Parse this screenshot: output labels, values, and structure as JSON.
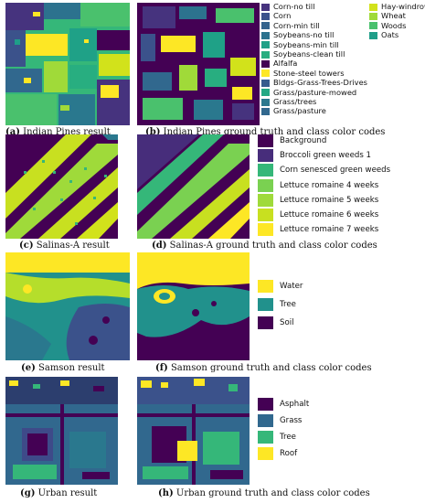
{
  "captions": {
    "a": {
      "letter": "(a)",
      "text": " Indian Pines result"
    },
    "b": {
      "letter": "(b)",
      "text": " Indian Pines ground truth and class color codes"
    },
    "c": {
      "letter": "(c)",
      "text": " Salinas-A result"
    },
    "d": {
      "letter": "(d)",
      "text": " Salinas-A ground truth and class color codes"
    },
    "e": {
      "letter": "(e)",
      "text": " Samson result"
    },
    "f": {
      "letter": "(f)",
      "text": " Samson ground truth and class color codes"
    },
    "g": {
      "letter": "(g)",
      "text": " Urban result"
    },
    "h": {
      "letter": "(h)",
      "text": " Urban ground truth and class color codes"
    }
  },
  "legends": {
    "indian_pines_col1": [
      {
        "label": "Corn-no till",
        "color": "#46337e"
      },
      {
        "label": "Corn",
        "color": "#3b528b"
      },
      {
        "label": "Corn-min till",
        "color": "#33638d"
      },
      {
        "label": "Soybeans-no till",
        "color": "#2c728e"
      },
      {
        "label": "Soybeans-min till",
        "color": "#1fa187"
      },
      {
        "label": "Soybeans-clean till",
        "color": "#28ae80"
      },
      {
        "label": "Alfalfa",
        "color": "#440154"
      },
      {
        "label": "Stone-steel towers",
        "color": "#fde725"
      },
      {
        "label": "Bldgs-Grass-Trees-Drives",
        "color": "#365c8d"
      },
      {
        "label": "Grass/pasture-mowed",
        "color": "#22a884"
      },
      {
        "label": "Grass/trees",
        "color": "#2a788e"
      },
      {
        "label": "Grass/pasture",
        "color": "#31688e"
      }
    ],
    "indian_pines_col2": [
      {
        "label": "Hay-windrowed",
        "color": "#d2e21b"
      },
      {
        "label": "Wheat",
        "color": "#a0da39"
      },
      {
        "label": "Woods",
        "color": "#4ac16d"
      },
      {
        "label": "Oats",
        "color": "#1f9e89"
      }
    ],
    "salinas": [
      {
        "label": "Background",
        "color": "#440154"
      },
      {
        "label": "Broccoli green weeds 1",
        "color": "#472d7b"
      },
      {
        "label": "Corn senesced green weeds",
        "color": "#35b779"
      },
      {
        "label": "Lettuce romaine 4 weeks",
        "color": "#7ad151"
      },
      {
        "label": "Lettuce romaine 5 weeks",
        "color": "#9fda3a"
      },
      {
        "label": "Lettuce romaine 6 weeks",
        "color": "#c8e020"
      },
      {
        "label": "Lettuce romaine 7 weeks",
        "color": "#fde725"
      }
    ],
    "samson": [
      {
        "label": "Water",
        "color": "#fde725"
      },
      {
        "label": "Tree",
        "color": "#21918c"
      },
      {
        "label": "Soil",
        "color": "#440154"
      }
    ],
    "urban": [
      {
        "label": "Asphalt",
        "color": "#440154"
      },
      {
        "label": "Grass",
        "color": "#31688e"
      },
      {
        "label": "Tree",
        "color": "#35b779"
      },
      {
        "label": "Roof",
        "color": "#fde725"
      }
    ]
  }
}
